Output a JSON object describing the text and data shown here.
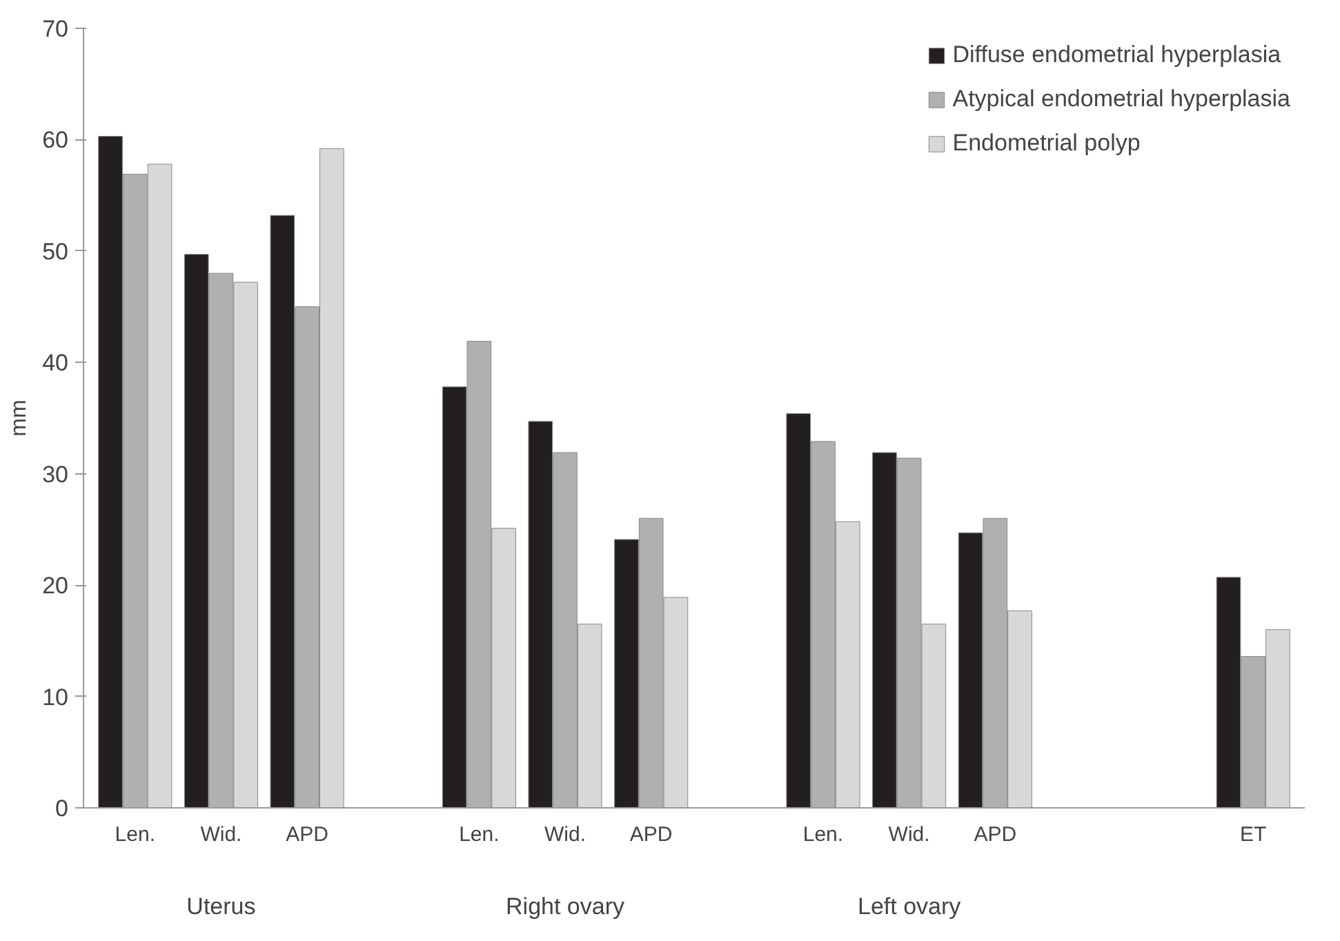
{
  "chart_data": {
    "type": "bar",
    "ylabel": "mm",
    "categories": [
      "Len.",
      "Wid.",
      "APD",
      null,
      "Len.",
      "Wid.",
      "APD",
      null,
      "Len.",
      "Wid.",
      "APD",
      null,
      null,
      "ET"
    ],
    "series": [
      {
        "name": "Diffuse endometrial hyperplasia",
        "color": "#231f20",
        "values": [
          60.3,
          49.7,
          53.2,
          null,
          37.8,
          34.7,
          24.1,
          null,
          35.4,
          31.9,
          24.7,
          null,
          null,
          20.7
        ]
      },
      {
        "name": "Atypical endometrial hyperplasia",
        "color": "#b0b0b2",
        "values": [
          56.9,
          48.0,
          45.0,
          null,
          41.9,
          31.9,
          26.0,
          null,
          32.9,
          31.4,
          26.0,
          null,
          null,
          13.6
        ]
      },
      {
        "name": "Endometrial polyp",
        "color": "#d8d8da",
        "values": [
          57.8,
          47.2,
          59.2,
          null,
          25.1,
          16.5,
          18.9,
          null,
          25.7,
          16.5,
          17.7,
          null,
          null,
          16.0
        ]
      }
    ],
    "annotations": [
      "Uterus",
      "Right ovary",
      "Left ovary"
    ],
    "ylim": [
      0,
      70
    ],
    "yticks": [
      0,
      10,
      20,
      30,
      40,
      50,
      60,
      70
    ],
    "grid": false,
    "legend": "top right"
  }
}
